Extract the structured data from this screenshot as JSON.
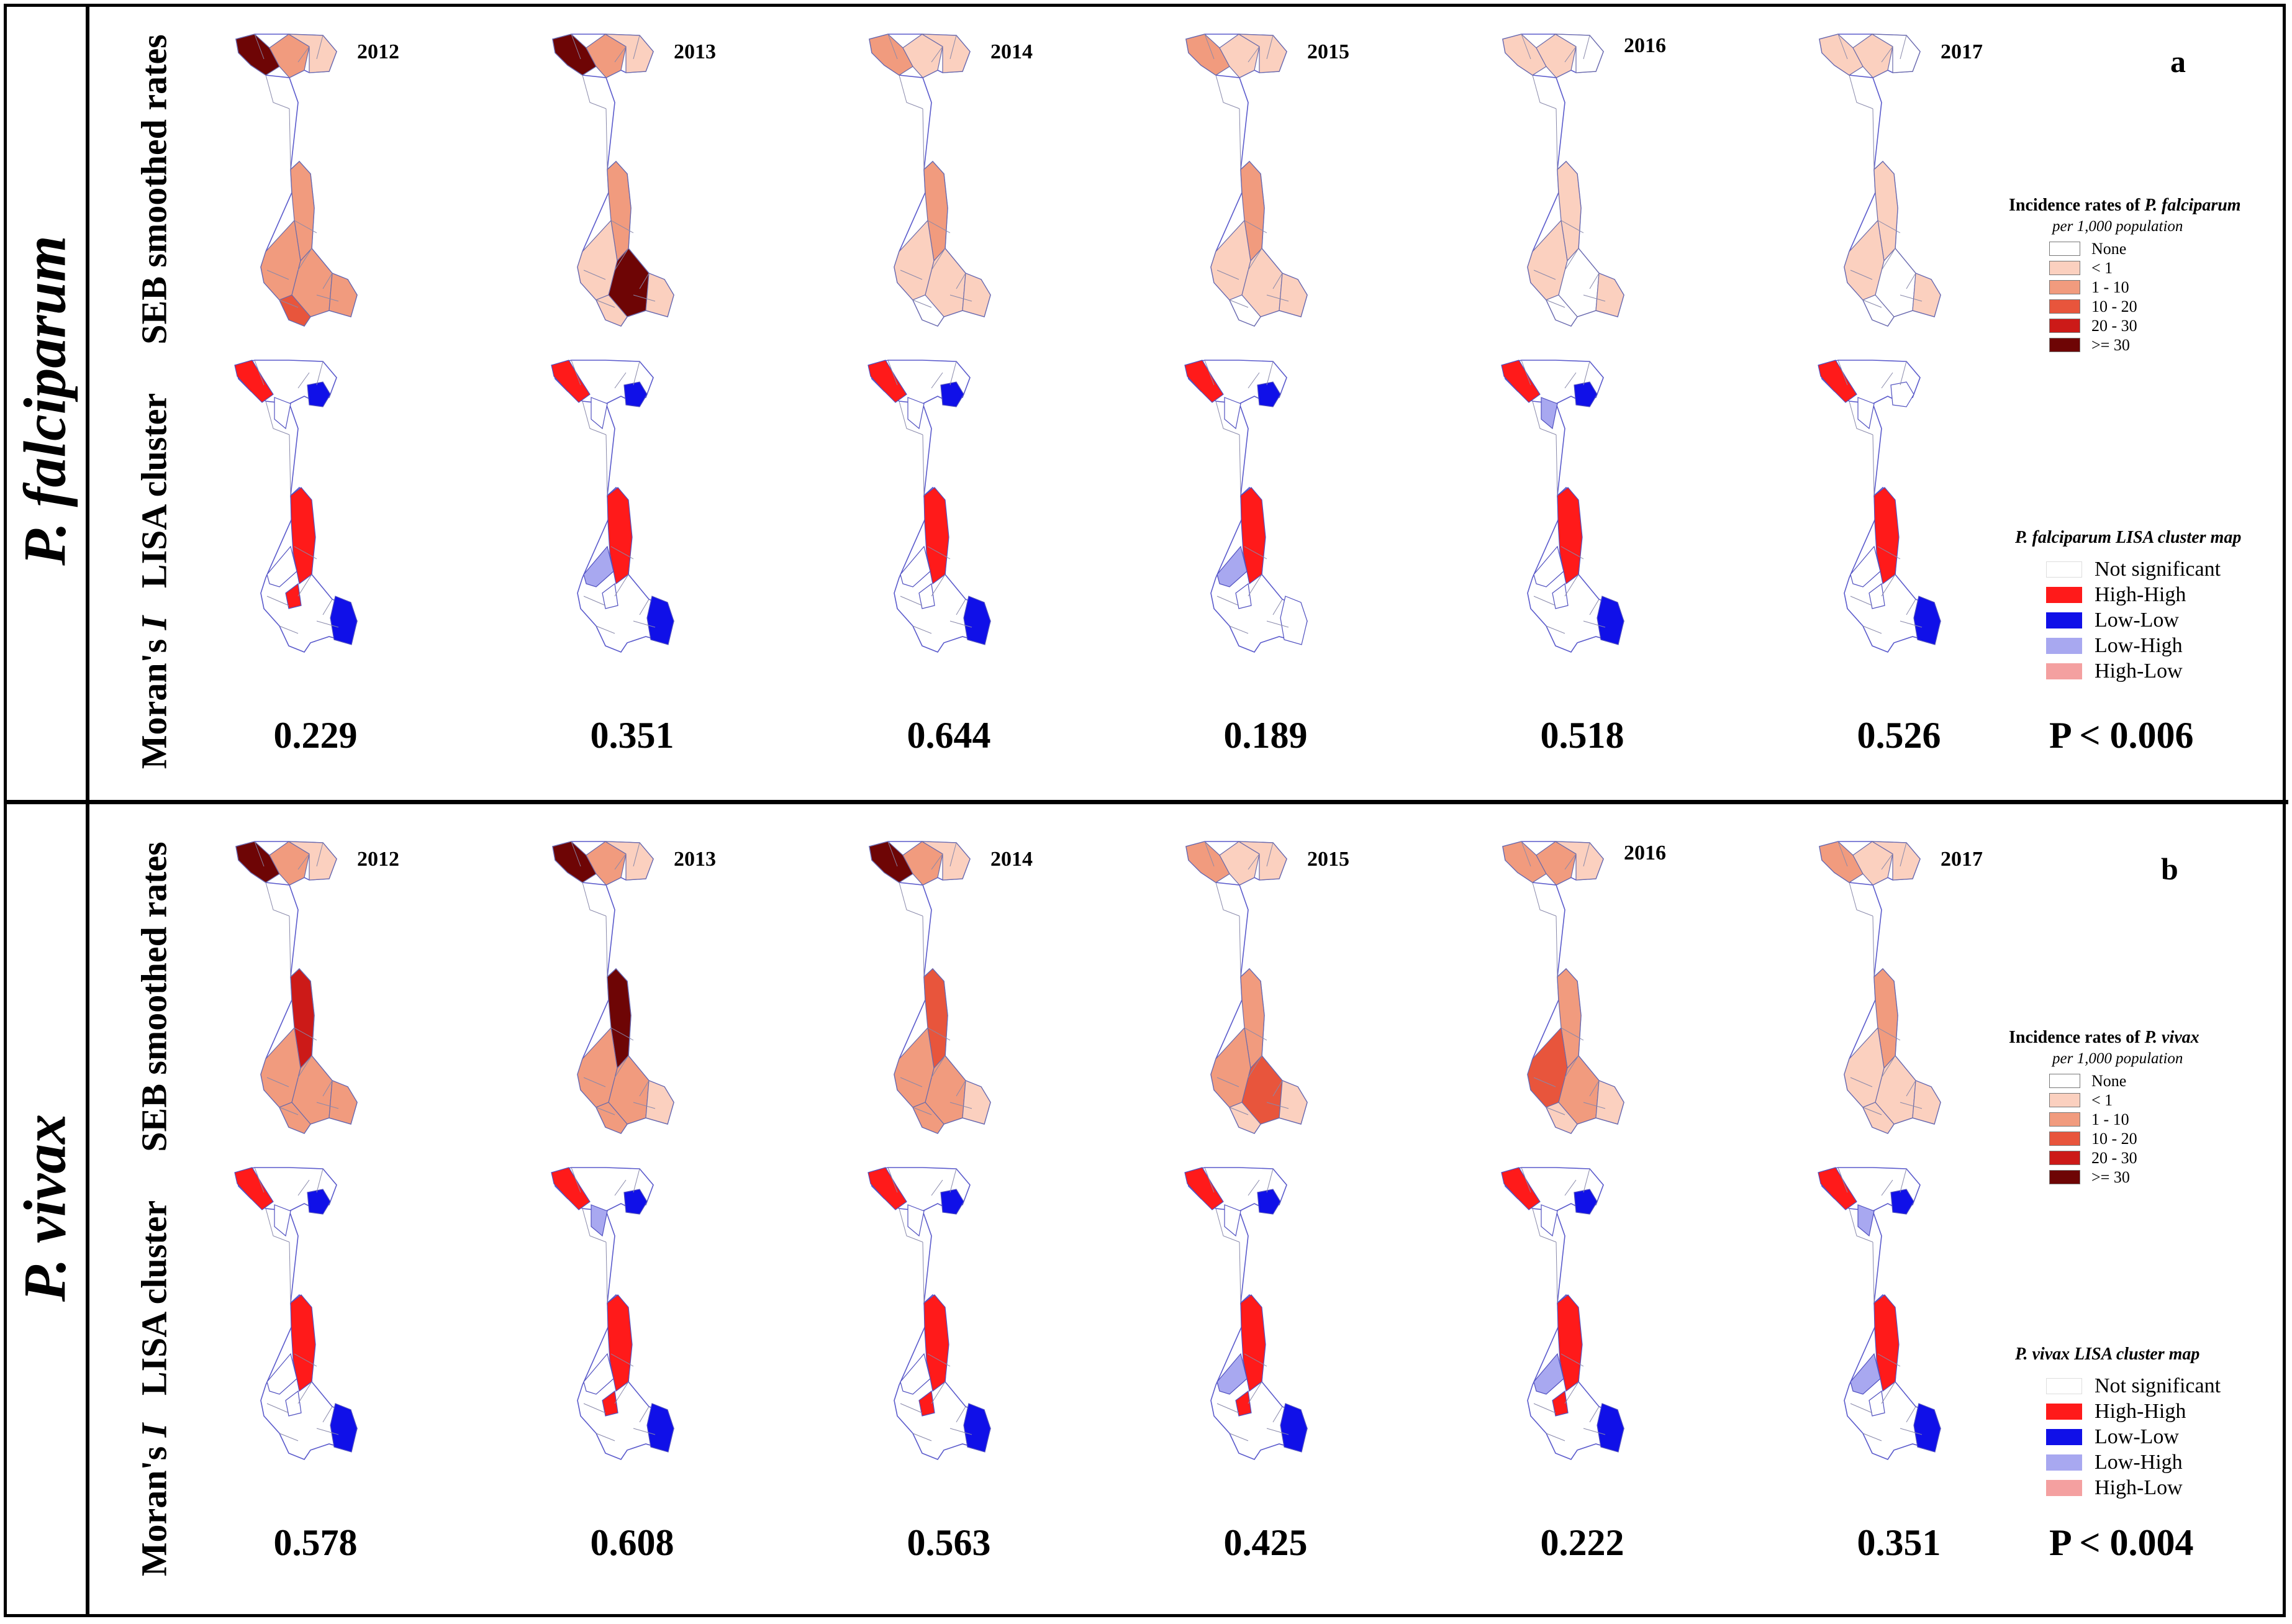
{
  "years": [
    "2012",
    "2013",
    "2014",
    "2015",
    "2016",
    "2017"
  ],
  "colors": {
    "none": "#ffffff",
    "lt1": "#fbd0bf",
    "r1_10": "#f19b7e",
    "r10_20": "#e8553c",
    "r20_30": "#cc1a18",
    "ge30": "#6e0505",
    "not_sig": "#ffffff",
    "high_high": "#ff1a1a",
    "low_low": "#1010e8",
    "low_high": "#a8a8f0",
    "high_low": "#f4a0a0",
    "boundary": "#5a5acc"
  },
  "panels": [
    {
      "id": "a",
      "letter": "a",
      "species": "P. falciparum",
      "row_labels": {
        "seb": "SEB smoothed rates",
        "lisa": "LISA cluster",
        "moran": "Moran's",
        "moran_i": "I"
      },
      "moran_values": [
        "0.229",
        "0.351",
        "0.644",
        "0.189",
        "0.518",
        "0.526"
      ],
      "p_value": "P < 0.006",
      "rate_legend": {
        "title_prefix": "Incidence rates of ",
        "species": "P. falciparum",
        "subtitle": "per 1,000 population",
        "items": [
          "None",
          "< 1",
          "1 - 10",
          "10 - 20",
          "20 - 30",
          ">= 30"
        ]
      },
      "lisa_legend": {
        "title": "P. falciparum  LISA cluster map",
        "items": [
          "Not significant",
          "High-High",
          "Low-Low",
          "Low-High",
          "High-Low"
        ]
      },
      "seb_fill": [
        [
          "ge30",
          "r1_10",
          "lt1",
          "r1_10",
          "r1_10",
          "r1_10",
          "r1_10",
          "r10_20"
        ],
        [
          "ge30",
          "r1_10",
          "lt1",
          "r1_10",
          "lt1",
          "ge30",
          "lt1",
          "lt1"
        ],
        [
          "r1_10",
          "lt1",
          "lt1",
          "r1_10",
          "lt1",
          "lt1",
          "lt1",
          "none"
        ],
        [
          "r1_10",
          "lt1",
          "lt1",
          "r1_10",
          "lt1",
          "lt1",
          "lt1",
          "none"
        ],
        [
          "lt1",
          "lt1",
          "none",
          "lt1",
          "lt1",
          "none",
          "lt1",
          "none"
        ],
        [
          "lt1",
          "lt1",
          "none",
          "lt1",
          "lt1",
          "none",
          "lt1",
          "none"
        ]
      ],
      "lisa_fill": [
        [
          "high_high",
          "low_low",
          "none",
          "high_high",
          "none",
          "high_high",
          "low_low"
        ],
        [
          "high_high",
          "low_low",
          "none",
          "high_high",
          "low_high",
          "none",
          "low_low"
        ],
        [
          "high_high",
          "low_low",
          "none",
          "high_high",
          "none",
          "none",
          "low_low"
        ],
        [
          "high_high",
          "low_low",
          "none",
          "high_high",
          "low_high",
          "none",
          "none"
        ],
        [
          "high_high",
          "low_low",
          "low_high",
          "high_high",
          "none",
          "none",
          "low_low"
        ],
        [
          "high_high",
          "none",
          "none",
          "high_high",
          "none",
          "none",
          "low_low"
        ]
      ]
    },
    {
      "id": "b",
      "letter": "b",
      "species": "P. vivax",
      "row_labels": {
        "seb": "SEB smoothed rates",
        "lisa": "LISA cluster",
        "moran": "Moran's",
        "moran_i": "I"
      },
      "moran_values": [
        "0.578",
        "0.608",
        "0.563",
        "0.425",
        "0.222",
        "0.351"
      ],
      "p_value": "P < 0.004",
      "rate_legend": {
        "title_prefix": "Incidence rates of ",
        "species": "P. vivax",
        "subtitle": "per 1,000 population",
        "items": [
          "None",
          "< 1",
          "1 - 10",
          "10 - 20",
          "20 - 30",
          ">= 30"
        ]
      },
      "lisa_legend": {
        "title": "P. vivax  LISA cluster map",
        "items": [
          "Not significant",
          "High-High",
          "Low-Low",
          "Low-High",
          "High-Low"
        ]
      },
      "seb_fill": [
        [
          "ge30",
          "r1_10",
          "lt1",
          "r20_30",
          "r1_10",
          "r1_10",
          "r1_10",
          "r1_10"
        ],
        [
          "ge30",
          "r1_10",
          "lt1",
          "ge30",
          "r1_10",
          "r1_10",
          "lt1",
          "r1_10"
        ],
        [
          "ge30",
          "r1_10",
          "lt1",
          "r10_20",
          "r1_10",
          "r1_10",
          "lt1",
          "r1_10"
        ],
        [
          "r1_10",
          "lt1",
          "lt1",
          "r1_10",
          "r1_10",
          "r10_20",
          "lt1",
          "lt1"
        ],
        [
          "r1_10",
          "r1_10",
          "lt1",
          "r1_10",
          "r10_20",
          "r1_10",
          "lt1",
          "lt1"
        ],
        [
          "r1_10",
          "lt1",
          "lt1",
          "r1_10",
          "lt1",
          "lt1",
          "lt1",
          "lt1"
        ]
      ],
      "lisa_fill": [
        [
          "high_high",
          "low_low",
          "none",
          "high_high",
          "none",
          "none",
          "low_low"
        ],
        [
          "high_high",
          "low_low",
          "low_high",
          "high_high",
          "none",
          "high_high",
          "low_low"
        ],
        [
          "high_high",
          "low_low",
          "none",
          "high_high",
          "none",
          "high_high",
          "low_low"
        ],
        [
          "high_high",
          "low_low",
          "none",
          "high_high",
          "low_high",
          "high_high",
          "low_low"
        ],
        [
          "high_high",
          "low_low",
          "none",
          "high_high",
          "low_high",
          "high_high",
          "low_low"
        ],
        [
          "high_high",
          "low_low",
          "low_high",
          "high_high",
          "low_high",
          "none",
          "low_low"
        ]
      ]
    }
  ]
}
